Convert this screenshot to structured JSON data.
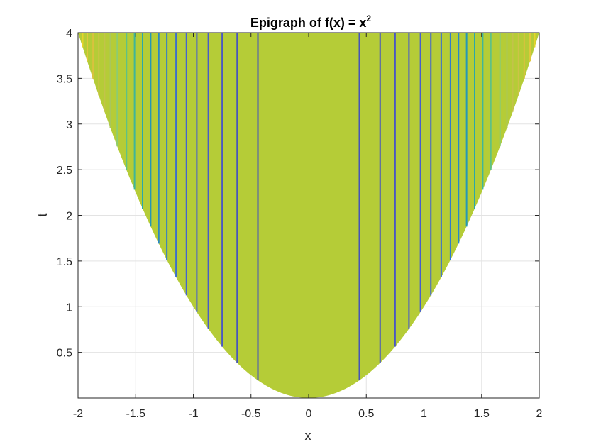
{
  "chart_data": {
    "type": "area",
    "title": "Epigraph of f(x) = x",
    "title_superscript": "2",
    "xlabel": "x",
    "ylabel": "t",
    "xlim": [
      -2,
      2
    ],
    "ylim": [
      0,
      4
    ],
    "x_ticks": [
      "-2",
      "-1.5",
      "-1",
      "-0.5",
      "0",
      "0.5",
      "1",
      "1.5",
      "2"
    ],
    "y_ticks": [
      "0.5",
      "1",
      "1.5",
      "2",
      "2.5",
      "3",
      "3.5",
      "4"
    ],
    "grid": true,
    "fill_color": "#b5cc37",
    "boundary": {
      "function": "t = x^2",
      "x": [
        -2,
        -1.5,
        -1,
        -0.5,
        0,
        0.5,
        1,
        1.5,
        2
      ],
      "t": [
        4,
        2.25,
        1,
        0.25,
        0,
        0.25,
        1,
        2.25,
        4
      ]
    },
    "vertical_lines": [
      {
        "x": -1.96,
        "color": "#e6d42a"
      },
      {
        "x": -1.92,
        "color": "#e0c73c"
      },
      {
        "x": -1.87,
        "color": "#d9c23e"
      },
      {
        "x": -1.82,
        "color": "#ccc347"
      },
      {
        "x": -1.77,
        "color": "#c2c34a"
      },
      {
        "x": -1.72,
        "color": "#a9c75a"
      },
      {
        "x": -1.66,
        "color": "#8ccc70"
      },
      {
        "x": -1.58,
        "color": "#5fc185"
      },
      {
        "x": -1.51,
        "color": "#3fb59a"
      },
      {
        "x": -1.44,
        "color": "#2aa7ab"
      },
      {
        "x": -1.37,
        "color": "#2297b8"
      },
      {
        "x": -1.3,
        "color": "#2a88c4"
      },
      {
        "x": -1.23,
        "color": "#317bca"
      },
      {
        "x": -1.15,
        "color": "#3a6ece"
      },
      {
        "x": -1.06,
        "color": "#4265cf"
      },
      {
        "x": -0.97,
        "color": "#475fcc"
      },
      {
        "x": -0.87,
        "color": "#4a5bc8"
      },
      {
        "x": -0.75,
        "color": "#4a58c2"
      },
      {
        "x": -0.62,
        "color": "#4856bc"
      },
      {
        "x": -0.44,
        "color": "#4655b8"
      },
      {
        "x": 0.44,
        "color": "#4655b8"
      },
      {
        "x": 0.62,
        "color": "#4856bc"
      },
      {
        "x": 0.75,
        "color": "#4a58c2"
      },
      {
        "x": 0.87,
        "color": "#4a5bc8"
      },
      {
        "x": 0.97,
        "color": "#475fcc"
      },
      {
        "x": 1.06,
        "color": "#4265cf"
      },
      {
        "x": 1.15,
        "color": "#3a6ece"
      },
      {
        "x": 1.23,
        "color": "#317bca"
      },
      {
        "x": 1.3,
        "color": "#2a88c4"
      },
      {
        "x": 1.37,
        "color": "#2297b8"
      },
      {
        "x": 1.44,
        "color": "#2aa7ab"
      },
      {
        "x": 1.51,
        "color": "#3fb59a"
      },
      {
        "x": 1.58,
        "color": "#5fc185"
      },
      {
        "x": 1.66,
        "color": "#8ccc70"
      },
      {
        "x": 1.72,
        "color": "#a9c75a"
      },
      {
        "x": 1.77,
        "color": "#c2c34a"
      },
      {
        "x": 1.82,
        "color": "#ccc347"
      },
      {
        "x": 1.87,
        "color": "#d9c23e"
      },
      {
        "x": 1.92,
        "color": "#e0c73c"
      },
      {
        "x": 1.96,
        "color": "#e6d42a"
      }
    ]
  }
}
